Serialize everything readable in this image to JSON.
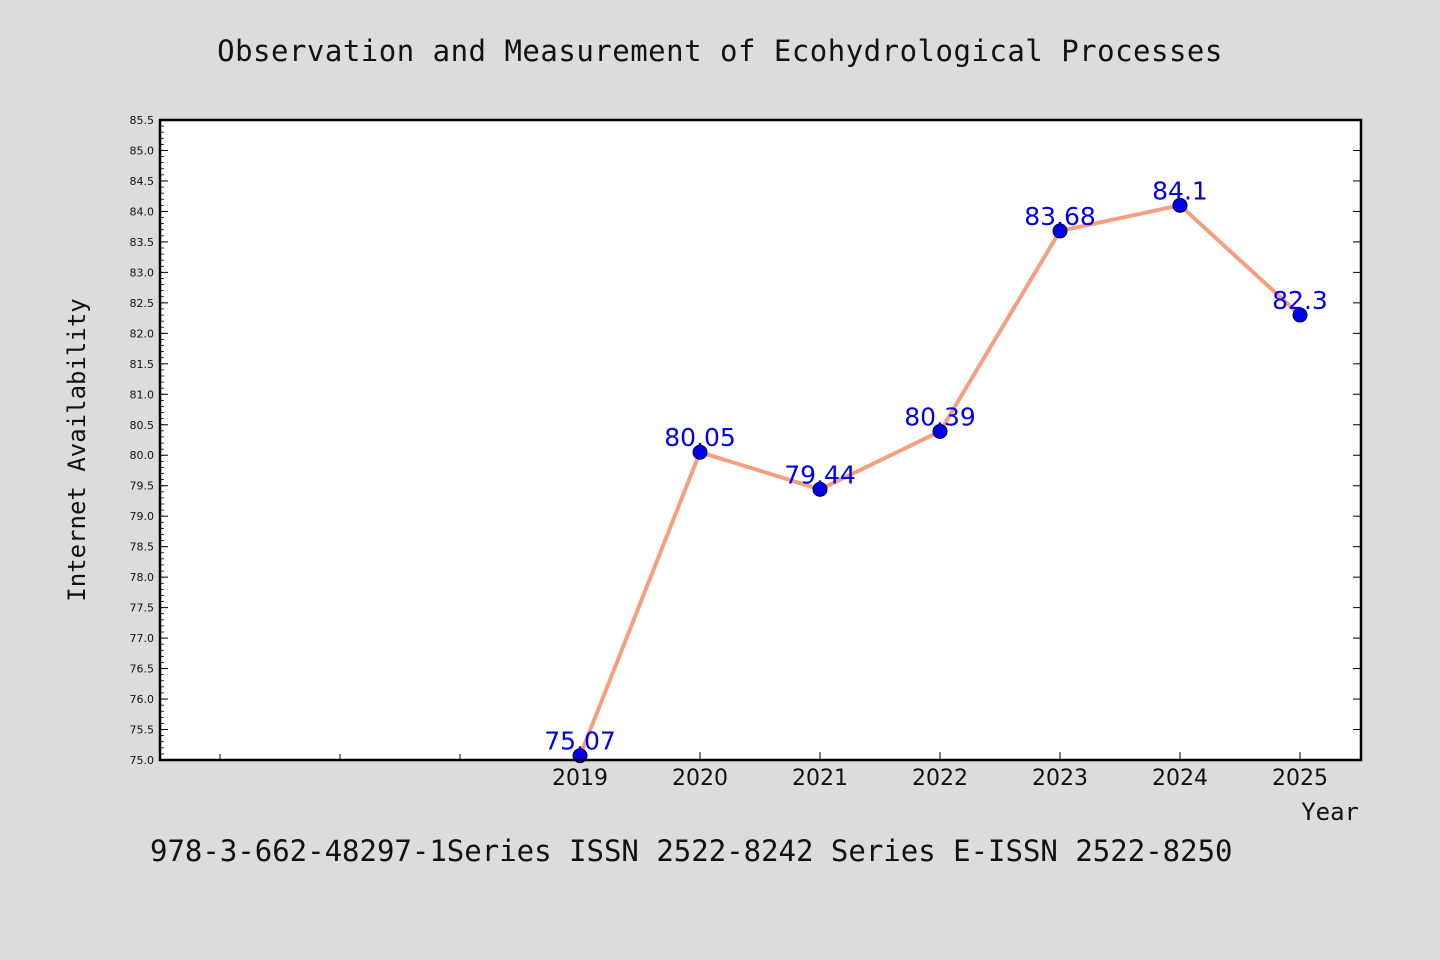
{
  "title": "Observation and Measurement of Ecohydrological Processes",
  "footer": "978-3-662-48297-1Series ISSN 2522-8242 Series E-ISSN 2522-8250",
  "chart_data": {
    "type": "line",
    "title": "Observation and Measurement of Ecohydrological Processes",
    "xlabel": "Year",
    "ylabel": "Internet Availability",
    "x": [
      "2019",
      "2020",
      "2021",
      "2022",
      "2023",
      "2024",
      "2025"
    ],
    "series": [
      {
        "values": [
          75.07,
          80.05,
          79.44,
          80.39,
          83.68,
          84.1,
          82.3
        ],
        "labels": [
          "75.07",
          "80.05",
          "79.44",
          "80.39",
          "83.68",
          "84.1",
          "82.3"
        ]
      }
    ],
    "ylim": [
      75.0,
      85.5
    ],
    "yticks": [
      "75.0",
      "75.5",
      "76.0",
      "76.5",
      "77.0",
      "77.5",
      "78.0",
      "78.5",
      "79.0",
      "79.5",
      "80.0",
      "80.5",
      "81.0",
      "81.5",
      "82.0",
      "82.5",
      "83.0",
      "83.5",
      "84.0",
      "84.5",
      "85.0",
      "85.5"
    ],
    "grid": false,
    "line_color": "#f4a080",
    "marker_color": "#0000ee",
    "label_color": "#0000ee"
  }
}
